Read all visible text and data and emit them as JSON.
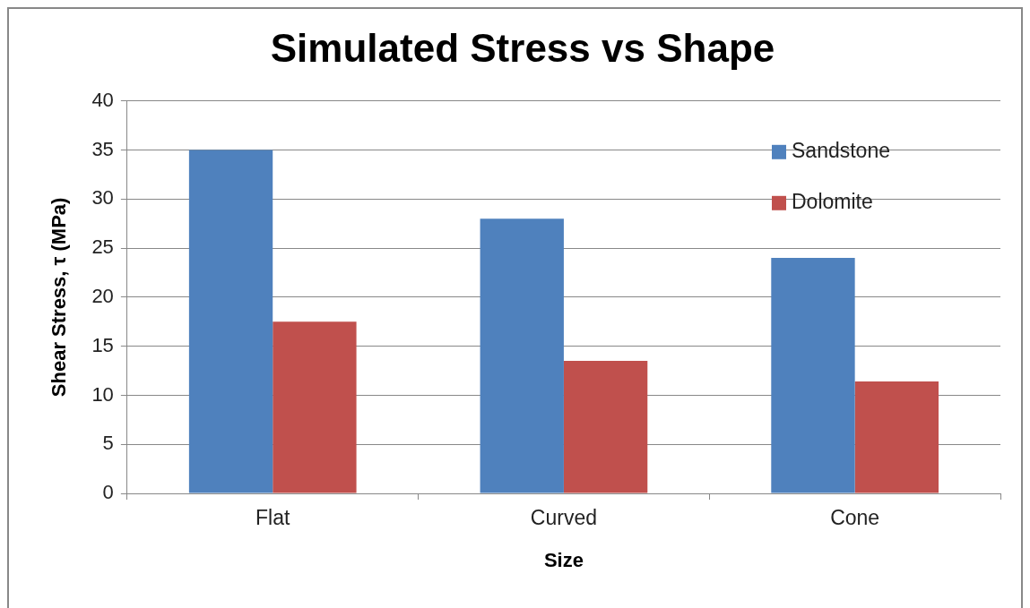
{
  "chart_data": {
    "type": "bar",
    "title": "Simulated Stress vs Shape",
    "xlabel": "Size",
    "ylabel": "Shear Stress, τ (MPa)",
    "categories": [
      "Flat",
      "Curved",
      "Cone"
    ],
    "series": [
      {
        "name": "Sandstone",
        "color": "#4f81bd",
        "values": [
          35,
          28,
          24
        ]
      },
      {
        "name": "Dolomite",
        "color": "#c0504d",
        "values": [
          17.5,
          13.5,
          11.4
        ]
      }
    ],
    "ylim": [
      0,
      40
    ],
    "yticks": [
      0,
      5,
      10,
      15,
      20,
      25,
      30,
      35,
      40
    ],
    "grid": "y",
    "legend": "top right"
  }
}
